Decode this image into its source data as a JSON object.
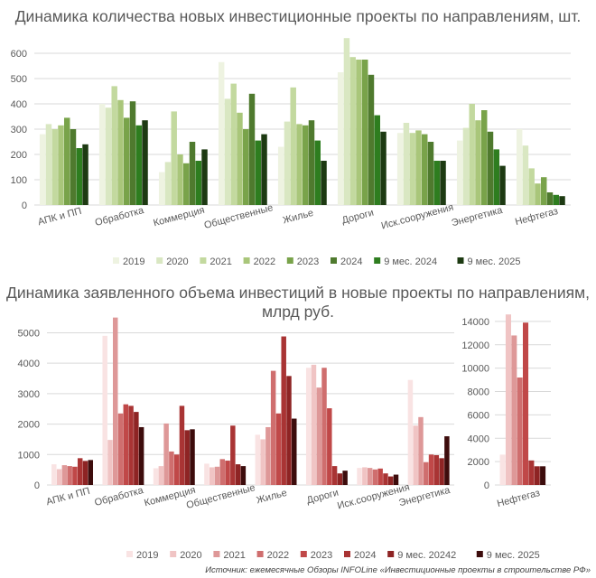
{
  "footer": {
    "source": "Источник: ежемесячные Обзоры INFOLine «Инвестиционные проекты в строительстве РФ»"
  },
  "chart_data": [
    {
      "type": "bar",
      "title": "Динамика количества новых инвестиционные проекты по направлениям, шт.",
      "categories": [
        "АПК и ПП",
        "Обработка",
        "Коммерция",
        "Общественные",
        "Жилье",
        "Дороги",
        "Иск.сооружения",
        "Энергетика",
        "Нефтегаз"
      ],
      "ylim": [
        0,
        650
      ],
      "yticks": [
        0,
        100,
        200,
        300,
        400,
        500,
        600
      ],
      "grid": true,
      "legend_position": "bottom",
      "series": [
        {
          "name": "2019",
          "color": "#eef3e1",
          "values": [
            280,
            400,
            130,
            565,
            230,
            525,
            285,
            255,
            300
          ]
        },
        {
          "name": "2020",
          "color": "#d9e7c2",
          "values": [
            320,
            385,
            170,
            420,
            330,
            660,
            325,
            305,
            235
          ]
        },
        {
          "name": "2021",
          "color": "#c3d99f",
          "values": [
            300,
            470,
            370,
            480,
            465,
            585,
            285,
            400,
            145
          ]
        },
        {
          "name": "2022",
          "color": "#a9c67a",
          "values": [
            315,
            415,
            200,
            365,
            320,
            575,
            295,
            335,
            85
          ]
        },
        {
          "name": "2023",
          "color": "#79a34a",
          "values": [
            345,
            345,
            165,
            300,
            315,
            575,
            280,
            375,
            110
          ]
        },
        {
          "name": "2024",
          "color": "#4f7a2e",
          "values": [
            300,
            410,
            250,
            440,
            335,
            515,
            250,
            290,
            50
          ]
        },
        {
          "name": "9 мес. 2024",
          "color": "#2e7d1f",
          "values": [
            225,
            315,
            175,
            255,
            255,
            355,
            175,
            220,
            40
          ]
        },
        {
          "name": "9 мес. 2025",
          "color": "#1d3a12",
          "values": [
            240,
            335,
            220,
            280,
            175,
            290,
            175,
            155,
            35
          ]
        }
      ]
    },
    {
      "type": "bar",
      "title": "Динамика заявленного объема инвестиций в новые проекты по направлениям, млрд руб.",
      "categories": [
        "АПК и ПП",
        "Обработка",
        "Коммерция",
        "Общественные",
        "Жилье",
        "Дороги",
        "Иск.сооружения",
        "Энергетика"
      ],
      "ylim": [
        0,
        5400
      ],
      "yticks": [
        0,
        1000,
        2000,
        3000,
        4000,
        5000
      ],
      "grid": true,
      "legend_position": "bottom",
      "series": [
        {
          "name": "2019",
          "color": "#f9e3e3",
          "values": [
            680,
            4900,
            550,
            700,
            1650,
            3850,
            560,
            3450
          ]
        },
        {
          "name": "2020",
          "color": "#f0c4c4",
          "values": [
            520,
            1480,
            620,
            580,
            1500,
            3950,
            580,
            1950
          ]
        },
        {
          "name": "2021",
          "color": "#de9898",
          "values": [
            650,
            5500,
            2020,
            600,
            1900,
            3200,
            560,
            2230
          ]
        },
        {
          "name": "2022",
          "color": "#cf6e6e",
          "values": [
            620,
            2350,
            1100,
            850,
            3750,
            3850,
            510,
            750
          ]
        },
        {
          "name": "2023",
          "color": "#c04848",
          "values": [
            600,
            2650,
            1000,
            800,
            2350,
            2520,
            540,
            1000
          ]
        },
        {
          "name": "2024",
          "color": "#a93434",
          "values": [
            880,
            2600,
            2600,
            1950,
            4880,
            620,
            380,
            980
          ]
        },
        {
          "name": "9 мес. 20242",
          "color": "#8e2424",
          "values": [
            790,
            2400,
            1800,
            680,
            3580,
            380,
            280,
            880
          ]
        },
        {
          "name": "9 мес. 2025",
          "color": "#3d0c0c",
          "values": [
            820,
            1900,
            1830,
            620,
            2180,
            470,
            340,
            1600
          ]
        }
      ]
    },
    {
      "type": "bar",
      "title": "",
      "categories": [
        "Нефтегаз"
      ],
      "ylim": [
        0,
        15000
      ],
      "yticks": [
        0,
        2000,
        4000,
        6000,
        8000,
        10000,
        12000,
        14000
      ],
      "grid": true,
      "series": [
        {
          "name": "2019",
          "color": "#f9e3e3",
          "values": [
            2600
          ]
        },
        {
          "name": "2020",
          "color": "#f0c4c4",
          "values": [
            14600
          ]
        },
        {
          "name": "2021",
          "color": "#de9898",
          "values": [
            12800
          ]
        },
        {
          "name": "2022",
          "color": "#cf6e6e",
          "values": [
            9200
          ]
        },
        {
          "name": "2023",
          "color": "#c04848",
          "values": [
            13900
          ]
        },
        {
          "name": "2024",
          "color": "#a93434",
          "values": [
            2100
          ]
        },
        {
          "name": "9 мес. 20242",
          "color": "#8e2424",
          "values": [
            1600
          ]
        },
        {
          "name": "9 мес. 2025",
          "color": "#3d0c0c",
          "values": [
            1600
          ]
        }
      ]
    }
  ]
}
